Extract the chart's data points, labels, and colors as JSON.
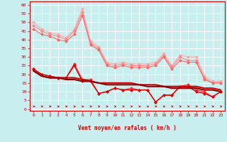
{
  "xlabel": "Vent moyen/en rafales ( km/h )",
  "bg_color": "#c8eef0",
  "grid_color": "#ffffff",
  "xlim": [
    -0.5,
    23.5
  ],
  "ylim": [
    -1,
    62
  ],
  "yticks": [
    0,
    5,
    10,
    15,
    20,
    25,
    30,
    35,
    40,
    45,
    50,
    55,
    60
  ],
  "xticks": [
    0,
    1,
    2,
    3,
    4,
    5,
    6,
    7,
    8,
    9,
    10,
    11,
    12,
    13,
    14,
    15,
    16,
    17,
    18,
    19,
    20,
    21,
    22,
    23
  ],
  "line1_color": "#ffaaaa",
  "line1_y": [
    50,
    46,
    44,
    43,
    41,
    46,
    58,
    39,
    36,
    27,
    26,
    27,
    26,
    26,
    26,
    27,
    32,
    25,
    31,
    30,
    30,
    19,
    16,
    16
  ],
  "line2_color": "#ff8888",
  "line2_y": [
    48,
    45,
    43,
    42,
    40,
    45,
    56,
    38,
    35,
    26,
    25,
    26,
    25,
    25,
    25,
    26,
    31,
    24,
    30,
    28,
    28,
    18,
    15,
    15
  ],
  "line3_color": "#ff6666",
  "line3_y": [
    46,
    43,
    42,
    40,
    39,
    43,
    54,
    37,
    34,
    25,
    24,
    25,
    24,
    24,
    24,
    25,
    30,
    23,
    28,
    27,
    27,
    17,
    15,
    15
  ],
  "line4_color": "#ff3333",
  "line4_y": [
    23,
    20,
    19,
    18,
    18,
    26,
    17,
    17,
    9,
    10,
    12,
    11,
    12,
    11,
    11,
    4,
    8,
    8,
    13,
    14,
    11,
    10,
    7,
    10
  ],
  "line5_color": "#dd0000",
  "line5_y": [
    23,
    20,
    19,
    18,
    18,
    25,
    16,
    16,
    9,
    10,
    12,
    11,
    11,
    11,
    11,
    4,
    8,
    8,
    13,
    13,
    10,
    9,
    7,
    10
  ],
  "line6_color": "#cc0000",
  "line6_y": [
    22,
    19,
    18,
    18,
    18,
    18,
    17,
    16,
    15,
    15,
    15,
    15,
    15,
    14,
    14,
    14,
    13,
    13,
    13,
    13,
    13,
    12,
    12,
    11
  ],
  "line7_color": "#880000",
  "line7_y": [
    22,
    19,
    18,
    18,
    17,
    17,
    16,
    16,
    15,
    14,
    14,
    14,
    14,
    14,
    13,
    13,
    13,
    12,
    12,
    12,
    12,
    11,
    11,
    10
  ],
  "marker_size": 2.5,
  "red_color": "#cc0000",
  "axis_color": "#cc0000"
}
